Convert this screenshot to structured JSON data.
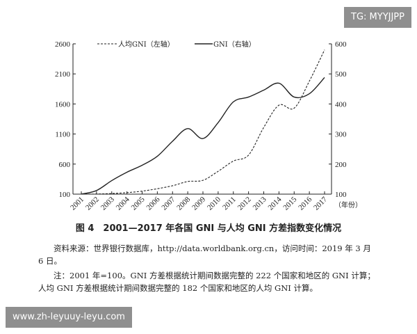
{
  "watermark_top": "TG: MYYJJPP",
  "watermark_bottom": "www.zh-leyuuy-leyu.com",
  "caption": "图 4　2001—2017 年各国 GNI 与人均 GNI 方差指数变化情况",
  "source_note": "资料来源：世界银行数据库，http://data.worldbank.org.cn，访问时间：2019 年 3 月 6 日。",
  "note": "注：2001 年=100。GNI 方差根据统计期间数据完整的 222 个国家和地区的 GNI 计算；人均 GNI 方差根据统计期间数据完整的 182 个国家和地区的人均 GNI 计算。",
  "chart_data": {
    "type": "line",
    "x": [
      "2001",
      "2002",
      "2003",
      "2004",
      "2005",
      "2006",
      "2007",
      "2008",
      "2009",
      "2010",
      "2011",
      "2012",
      "2013",
      "2014",
      "2015",
      "2016",
      "2017"
    ],
    "xlabel": "（年份）",
    "y_left": {
      "ticks": [
        100,
        600,
        1100,
        1600,
        2100,
        2600
      ],
      "range": [
        100,
        2600
      ]
    },
    "y_right": {
      "ticks": [
        100,
        200,
        300,
        400,
        500,
        600
      ],
      "range": [
        100,
        600
      ]
    },
    "legend_position": "top",
    "grid": false,
    "series": [
      {
        "name": "人均GNI（左轴）",
        "axis": "left",
        "style": "dashed",
        "values": [
          100,
          102,
          110,
          125,
          150,
          190,
          240,
          310,
          330,
          480,
          650,
          750,
          1210,
          1580,
          1530,
          1980,
          2500
        ]
      },
      {
        "name": "GNI（右轴）",
        "axis": "right",
        "style": "solid",
        "values": [
          100,
          112,
          145,
          173,
          196,
          226,
          276,
          318,
          285,
          338,
          407,
          423,
          446,
          469,
          423,
          434,
          488
        ]
      }
    ]
  }
}
